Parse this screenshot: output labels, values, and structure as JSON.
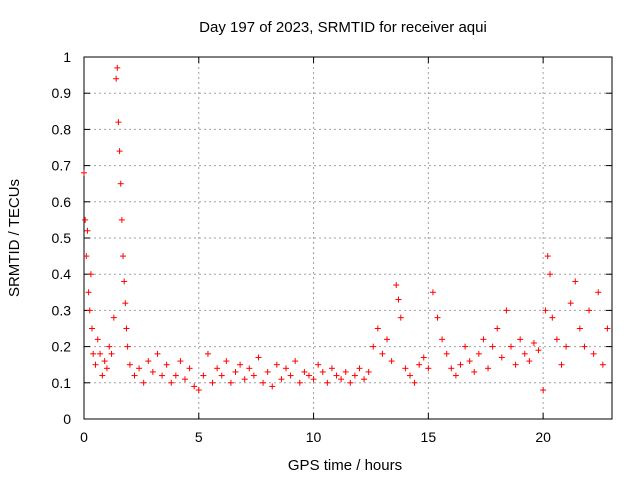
{
  "chart_data": {
    "type": "scatter",
    "title": "Day 197 of 2023, SRMTID for receiver aqui",
    "xlabel": "GPS time / hours",
    "ylabel": "SRMTID / TECUs",
    "xlim": [
      0,
      23
    ],
    "ylim": [
      0,
      1
    ],
    "xticks": [
      0,
      5,
      10,
      15,
      20
    ],
    "xtick_labels": [
      "0",
      "5",
      "10",
      "15",
      "20"
    ],
    "yticks": [
      0,
      0.1,
      0.2,
      0.3,
      0.4,
      0.5,
      0.6,
      0.7,
      0.8,
      0.9,
      1
    ],
    "ytick_labels": [
      "0",
      "0.1",
      "0.2",
      "0.3",
      "0.4",
      "0.5",
      "0.6",
      "0.7",
      "0.8",
      "0.9",
      "1"
    ],
    "grid": true,
    "marker": "+",
    "series": [
      {
        "name": "SRMTID",
        "color": "#ff0000",
        "x": [
          0.0,
          0.05,
          0.1,
          0.15,
          0.2,
          0.25,
          0.3,
          0.35,
          0.4,
          0.5,
          0.6,
          0.7,
          0.8,
          0.9,
          1.0,
          1.1,
          1.2,
          1.3,
          1.4,
          1.45,
          1.5,
          1.55,
          1.6,
          1.65,
          1.7,
          1.75,
          1.8,
          1.85,
          1.9,
          2.0,
          2.2,
          2.4,
          2.6,
          2.8,
          3.0,
          3.2,
          3.4,
          3.6,
          3.8,
          4.0,
          4.2,
          4.4,
          4.6,
          4.8,
          5.0,
          5.2,
          5.4,
          5.6,
          5.8,
          6.0,
          6.2,
          6.4,
          6.6,
          6.8,
          7.0,
          7.2,
          7.4,
          7.6,
          7.8,
          8.0,
          8.2,
          8.4,
          8.6,
          8.8,
          9.0,
          9.2,
          9.4,
          9.6,
          9.8,
          10.0,
          10.2,
          10.4,
          10.6,
          10.8,
          11.0,
          11.2,
          11.4,
          11.6,
          11.8,
          12.0,
          12.2,
          12.4,
          12.6,
          12.8,
          13.0,
          13.2,
          13.4,
          13.6,
          13.7,
          13.8,
          14.0,
          14.2,
          14.4,
          14.6,
          14.8,
          15.0,
          15.2,
          15.4,
          15.6,
          15.8,
          16.0,
          16.2,
          16.4,
          16.6,
          16.8,
          17.0,
          17.2,
          17.4,
          17.6,
          17.8,
          18.0,
          18.2,
          18.4,
          18.6,
          18.8,
          19.0,
          19.2,
          19.4,
          19.6,
          19.8,
          20.0,
          20.1,
          20.2,
          20.3,
          20.4,
          20.6,
          20.8,
          21.0,
          21.2,
          21.4,
          21.6,
          21.8,
          22.0,
          22.2,
          22.4,
          22.6,
          22.8
        ],
        "values": [
          0.68,
          0.55,
          0.45,
          0.52,
          0.35,
          0.3,
          0.4,
          0.25,
          0.18,
          0.15,
          0.22,
          0.18,
          0.12,
          0.16,
          0.14,
          0.2,
          0.18,
          0.28,
          0.94,
          0.97,
          0.82,
          0.74,
          0.65,
          0.55,
          0.45,
          0.38,
          0.32,
          0.25,
          0.2,
          0.15,
          0.12,
          0.14,
          0.1,
          0.16,
          0.13,
          0.18,
          0.12,
          0.15,
          0.1,
          0.12,
          0.16,
          0.11,
          0.14,
          0.09,
          0.08,
          0.12,
          0.18,
          0.1,
          0.14,
          0.12,
          0.16,
          0.1,
          0.13,
          0.15,
          0.11,
          0.14,
          0.12,
          0.17,
          0.1,
          0.13,
          0.09,
          0.15,
          0.11,
          0.14,
          0.12,
          0.16,
          0.1,
          0.13,
          0.12,
          0.11,
          0.15,
          0.13,
          0.1,
          0.14,
          0.12,
          0.11,
          0.13,
          0.1,
          0.12,
          0.14,
          0.11,
          0.13,
          0.2,
          0.25,
          0.18,
          0.22,
          0.16,
          0.37,
          0.33,
          0.28,
          0.14,
          0.12,
          0.1,
          0.15,
          0.17,
          0.14,
          0.35,
          0.28,
          0.22,
          0.18,
          0.14,
          0.12,
          0.15,
          0.2,
          0.16,
          0.13,
          0.18,
          0.22,
          0.14,
          0.2,
          0.25,
          0.17,
          0.3,
          0.2,
          0.15,
          0.22,
          0.18,
          0.16,
          0.21,
          0.19,
          0.08,
          0.3,
          0.45,
          0.4,
          0.28,
          0.22,
          0.15,
          0.2,
          0.32,
          0.38,
          0.25,
          0.2,
          0.3,
          0.18,
          0.35,
          0.15,
          0.25
        ]
      }
    ]
  }
}
